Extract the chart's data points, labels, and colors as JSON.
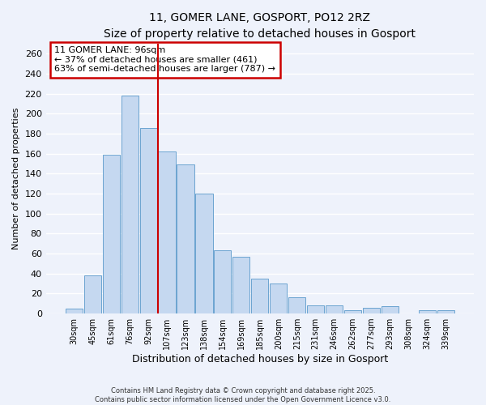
{
  "title": "11, GOMER LANE, GOSPORT, PO12 2RZ",
  "subtitle": "Size of property relative to detached houses in Gosport",
  "xlabel": "Distribution of detached houses by size in Gosport",
  "ylabel": "Number of detached properties",
  "categories": [
    "30sqm",
    "45sqm",
    "61sqm",
    "76sqm",
    "92sqm",
    "107sqm",
    "123sqm",
    "138sqm",
    "154sqm",
    "169sqm",
    "185sqm",
    "200sqm",
    "215sqm",
    "231sqm",
    "246sqm",
    "262sqm",
    "277sqm",
    "293sqm",
    "308sqm",
    "324sqm",
    "339sqm"
  ],
  "values": [
    5,
    38,
    159,
    218,
    186,
    162,
    149,
    120,
    63,
    57,
    35,
    30,
    16,
    8,
    8,
    3,
    6,
    7,
    0,
    3,
    3
  ],
  "bar_color": "#c5d8f0",
  "bar_edge_color": "#6ba3d0",
  "vline_x_index": 4.5,
  "vline_color": "#cc0000",
  "annotation_title": "11 GOMER LANE: 96sqm",
  "annotation_line1": "← 37% of detached houses are smaller (461)",
  "annotation_line2": "63% of semi-detached houses are larger (787) →",
  "ylim": [
    0,
    270
  ],
  "yticks": [
    0,
    20,
    40,
    60,
    80,
    100,
    120,
    140,
    160,
    180,
    200,
    220,
    240,
    260
  ],
  "footnote1": "Contains HM Land Registry data © Crown copyright and database right 2025.",
  "footnote2": "Contains public sector information licensed under the Open Government Licence v3.0.",
  "background_color": "#eef2fb",
  "grid_color": "#ffffff",
  "title_fontsize": 10,
  "subtitle_fontsize": 9,
  "xlabel_fontsize": 9,
  "ylabel_fontsize": 8,
  "tick_fontsize": 8,
  "ann_fontsize": 8
}
